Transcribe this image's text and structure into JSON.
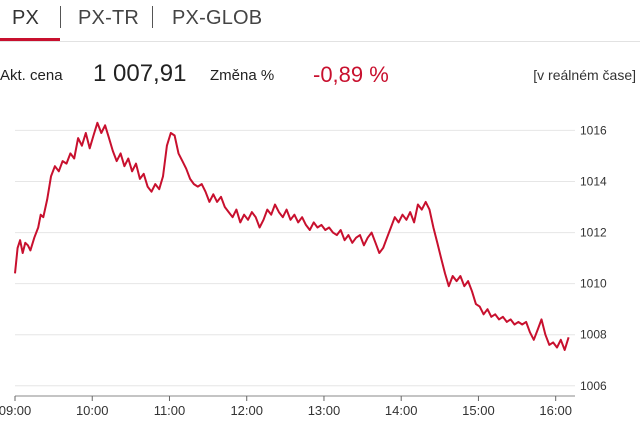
{
  "tabs": [
    {
      "label": "PX",
      "active": true
    },
    {
      "label": "PX-TR",
      "active": false
    },
    {
      "label": "PX-GLOB",
      "active": false
    }
  ],
  "quote": {
    "price_label": "Akt. cena",
    "price_value": "1 007,91",
    "change_label": "Změna %",
    "change_value": "-0,89 %",
    "realtime_label": "[v reálném čase]"
  },
  "colors": {
    "accent": "#c8102e",
    "grid": "#e6e6e6",
    "text": "#222222"
  },
  "chart_data": {
    "type": "line",
    "series": [
      {
        "values": [
          [
            "09:00",
            1010.4
          ],
          [
            "09:02",
            1011.4
          ],
          [
            "09:04",
            1011.7
          ],
          [
            "09:06",
            1011.2
          ],
          [
            "09:08",
            1011.6
          ],
          [
            "09:10",
            1011.5
          ],
          [
            "09:12",
            1011.3
          ],
          [
            "09:15",
            1011.8
          ],
          [
            "09:18",
            1012.2
          ],
          [
            "09:20",
            1012.7
          ],
          [
            "09:22",
            1012.6
          ],
          [
            "09:25",
            1013.3
          ],
          [
            "09:28",
            1014.2
          ],
          [
            "09:31",
            1014.6
          ],
          [
            "09:34",
            1014.4
          ],
          [
            "09:37",
            1014.8
          ],
          [
            "09:40",
            1014.7
          ],
          [
            "09:43",
            1015.1
          ],
          [
            "09:46",
            1014.9
          ],
          [
            "09:49",
            1015.7
          ],
          [
            "09:52",
            1015.4
          ],
          [
            "09:55",
            1015.9
          ],
          [
            "09:58",
            1015.3
          ],
          [
            "10:01",
            1015.8
          ],
          [
            "10:04",
            1016.3
          ],
          [
            "10:07",
            1015.9
          ],
          [
            "10:10",
            1016.2
          ],
          [
            "10:13",
            1015.7
          ],
          [
            "10:16",
            1015.2
          ],
          [
            "10:19",
            1014.8
          ],
          [
            "10:22",
            1015.1
          ],
          [
            "10:25",
            1014.6
          ],
          [
            "10:28",
            1014.9
          ],
          [
            "10:31",
            1014.4
          ],
          [
            "10:34",
            1014.7
          ],
          [
            "10:37",
            1014.1
          ],
          [
            "10:40",
            1014.3
          ],
          [
            "10:43",
            1013.8
          ],
          [
            "10:46",
            1013.6
          ],
          [
            "10:49",
            1013.9
          ],
          [
            "10:52",
            1013.7
          ],
          [
            "10:55",
            1014.2
          ],
          [
            "10:58",
            1015.4
          ],
          [
            "11:01",
            1015.9
          ],
          [
            "11:04",
            1015.8
          ],
          [
            "11:07",
            1015.1
          ],
          [
            "11:10",
            1014.8
          ],
          [
            "11:13",
            1014.5
          ],
          [
            "11:16",
            1014.1
          ],
          [
            "11:19",
            1013.9
          ],
          [
            "11:22",
            1013.8
          ],
          [
            "11:25",
            1013.9
          ],
          [
            "11:28",
            1013.6
          ],
          [
            "11:31",
            1013.2
          ],
          [
            "11:34",
            1013.5
          ],
          [
            "11:37",
            1013.2
          ],
          [
            "11:40",
            1013.4
          ],
          [
            "11:43",
            1013.0
          ],
          [
            "11:46",
            1012.8
          ],
          [
            "11:49",
            1012.6
          ],
          [
            "11:52",
            1012.9
          ],
          [
            "11:55",
            1012.4
          ],
          [
            "11:58",
            1012.7
          ],
          [
            "12:01",
            1012.5
          ],
          [
            "12:04",
            1012.8
          ],
          [
            "12:07",
            1012.6
          ],
          [
            "12:10",
            1012.2
          ],
          [
            "12:13",
            1012.5
          ],
          [
            "12:16",
            1012.9
          ],
          [
            "12:19",
            1012.7
          ],
          [
            "12:22",
            1013.1
          ],
          [
            "12:25",
            1012.8
          ],
          [
            "12:28",
            1012.6
          ],
          [
            "12:31",
            1012.9
          ],
          [
            "12:34",
            1012.5
          ],
          [
            "12:37",
            1012.7
          ],
          [
            "12:40",
            1012.4
          ],
          [
            "12:43",
            1012.6
          ],
          [
            "12:46",
            1012.3
          ],
          [
            "12:49",
            1012.1
          ],
          [
            "12:52",
            1012.4
          ],
          [
            "12:55",
            1012.2
          ],
          [
            "12:58",
            1012.3
          ],
          [
            "13:01",
            1012.1
          ],
          [
            "13:04",
            1012.2
          ],
          [
            "13:07",
            1012.0
          ],
          [
            "13:10",
            1011.9
          ],
          [
            "13:13",
            1012.1
          ],
          [
            "13:16",
            1011.7
          ],
          [
            "13:19",
            1011.9
          ],
          [
            "13:22",
            1011.6
          ],
          [
            "13:25",
            1011.8
          ],
          [
            "13:28",
            1011.9
          ],
          [
            "13:31",
            1011.5
          ],
          [
            "13:34",
            1011.8
          ],
          [
            "13:37",
            1012.0
          ],
          [
            "13:40",
            1011.6
          ],
          [
            "13:43",
            1011.2
          ],
          [
            "13:46",
            1011.4
          ],
          [
            "13:49",
            1011.8
          ],
          [
            "13:52",
            1012.2
          ],
          [
            "13:55",
            1012.6
          ],
          [
            "13:58",
            1012.4
          ],
          [
            "14:01",
            1012.7
          ],
          [
            "14:04",
            1012.5
          ],
          [
            "14:07",
            1012.8
          ],
          [
            "14:10",
            1012.4
          ],
          [
            "14:13",
            1013.1
          ],
          [
            "14:16",
            1012.9
          ],
          [
            "14:19",
            1013.2
          ],
          [
            "14:22",
            1012.9
          ],
          [
            "14:25",
            1012.2
          ],
          [
            "14:28",
            1011.6
          ],
          [
            "14:31",
            1011.0
          ],
          [
            "14:34",
            1010.4
          ],
          [
            "14:37",
            1009.9
          ],
          [
            "14:40",
            1010.3
          ],
          [
            "14:43",
            1010.1
          ],
          [
            "14:46",
            1010.3
          ],
          [
            "14:49",
            1009.9
          ],
          [
            "14:52",
            1010.1
          ],
          [
            "14:55",
            1009.7
          ],
          [
            "14:58",
            1009.2
          ],
          [
            "15:01",
            1009.1
          ],
          [
            "15:04",
            1008.8
          ],
          [
            "15:07",
            1009.0
          ],
          [
            "15:10",
            1008.7
          ],
          [
            "15:13",
            1008.8
          ],
          [
            "15:16",
            1008.6
          ],
          [
            "15:19",
            1008.7
          ],
          [
            "15:22",
            1008.5
          ],
          [
            "15:25",
            1008.6
          ],
          [
            "15:28",
            1008.4
          ],
          [
            "15:31",
            1008.5
          ],
          [
            "15:34",
            1008.4
          ],
          [
            "15:37",
            1008.5
          ],
          [
            "15:40",
            1008.1
          ],
          [
            "15:43",
            1007.8
          ],
          [
            "15:46",
            1008.2
          ],
          [
            "15:49",
            1008.6
          ],
          [
            "15:52",
            1008.0
          ],
          [
            "15:55",
            1007.6
          ],
          [
            "15:58",
            1007.7
          ],
          [
            "16:01",
            1007.5
          ],
          [
            "16:04",
            1007.8
          ],
          [
            "16:07",
            1007.4
          ],
          [
            "16:10",
            1007.9
          ]
        ]
      }
    ],
    "x_ticks": [
      "09:00",
      "10:00",
      "11:00",
      "12:00",
      "13:00",
      "14:00",
      "15:00",
      "16:00"
    ],
    "y_ticks": [
      1006,
      1008,
      1010,
      1012,
      1014,
      1016
    ],
    "xlim": [
      "09:00",
      "16:15"
    ],
    "ylim": [
      1005.6,
      1016.8
    ],
    "grid": "horizontal",
    "y_axis_side": "right"
  }
}
